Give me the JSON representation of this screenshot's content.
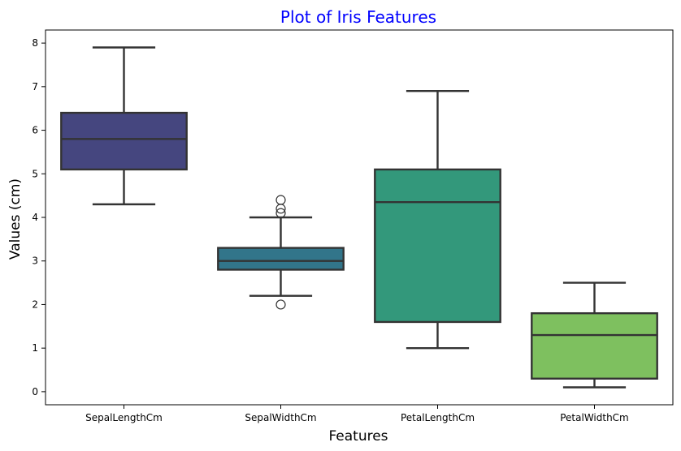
{
  "chart_data": {
    "type": "box",
    "title": "Plot of Iris Features",
    "title_color": "#0000ff",
    "xlabel": "Features",
    "ylabel": "Values (cm)",
    "ylim": [
      -0.3,
      8.3
    ],
    "yticks": [
      0,
      1,
      2,
      3,
      4,
      5,
      6,
      7,
      8
    ],
    "grid": false,
    "categories": [
      "SepalLengthCm",
      "SepalWidthCm",
      "PetalLengthCm",
      "PetalWidthCm"
    ],
    "boxes": [
      {
        "name": "SepalLengthCm",
        "whisker_low": 4.3,
        "q1": 5.1,
        "median": 5.8,
        "q3": 6.4,
        "whisker_high": 7.9,
        "outliers": [],
        "color": "#45467f"
      },
      {
        "name": "SepalWidthCm",
        "whisker_low": 2.2,
        "q1": 2.8,
        "median": 3.0,
        "q3": 3.3,
        "whisker_high": 4.0,
        "outliers": [
          4.4,
          4.2,
          4.1,
          2.0
        ],
        "color": "#32758a"
      },
      {
        "name": "PetalLengthCm",
        "whisker_low": 1.0,
        "q1": 1.6,
        "median": 4.35,
        "q3": 5.1,
        "whisker_high": 6.9,
        "outliers": [],
        "color": "#33987b"
      },
      {
        "name": "PetalWidthCm",
        "whisker_low": 0.1,
        "q1": 0.3,
        "median": 1.3,
        "q3": 1.8,
        "whisker_high": 2.5,
        "outliers": [],
        "color": "#7ec05f"
      }
    ]
  }
}
